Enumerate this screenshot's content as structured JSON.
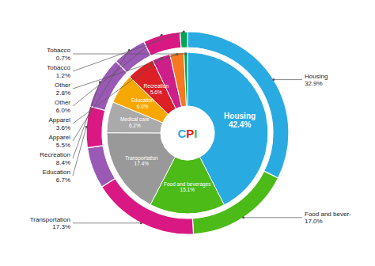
{
  "chart_data": {
    "type": "pie",
    "data_labels": true,
    "annotations": [
      {
        "text": "C",
        "color": "#29ABE2"
      },
      {
        "text": "P",
        "color": "#DD1F26"
      },
      {
        "text": "I",
        "color": "#4CBB17"
      }
    ],
    "series": [
      {
        "categories": [
          "Housing",
          "Food and beverages",
          "Transportation",
          "Medical care",
          "Education",
          "Recreation",
          "Apparel",
          "Other",
          "Tobacco"
        ],
        "values": [
          42.4,
          15.1,
          17.4,
          6.2,
          6.0,
          5.6,
          3.6,
          2.8,
          0.7
        ],
        "value_labels": [
          "42.4%",
          "15.1%",
          "17.4%",
          "6.2%",
          "6.0%",
          "5.6%",
          "3.6%",
          "2.8%",
          "0.7%"
        ],
        "colors": [
          "#29ABE2",
          "#4CBB17",
          "#999999",
          "#AAAAAA",
          "#F7A800",
          "#DD1F26",
          "#CC1F8A",
          "#F47920",
          "#00A651"
        ]
      },
      {
        "categories": [
          "Housing",
          "Food and bever-",
          "Transportation",
          null,
          "Education",
          "Recreation",
          "Apparel",
          "Other",
          "Tobacco"
        ],
        "values": [
          32.9,
          17.0,
          17.3,
          6.7,
          6.7,
          8.4,
          5.5,
          6.0,
          1.2
        ],
        "value_labels": [
          "32.9%",
          "17.0%",
          "17.3%",
          null,
          "6.7%",
          "8.4%",
          "5.5%",
          "6.0%",
          "1.2%"
        ],
        "colors": [
          "#29ABE2",
          "#4CBB17",
          "#DA1884",
          "#9B59B6",
          "#DA1884",
          "#9B59B6",
          "#9B59B6",
          "#DA1884",
          "#00A651"
        ]
      }
    ]
  }
}
